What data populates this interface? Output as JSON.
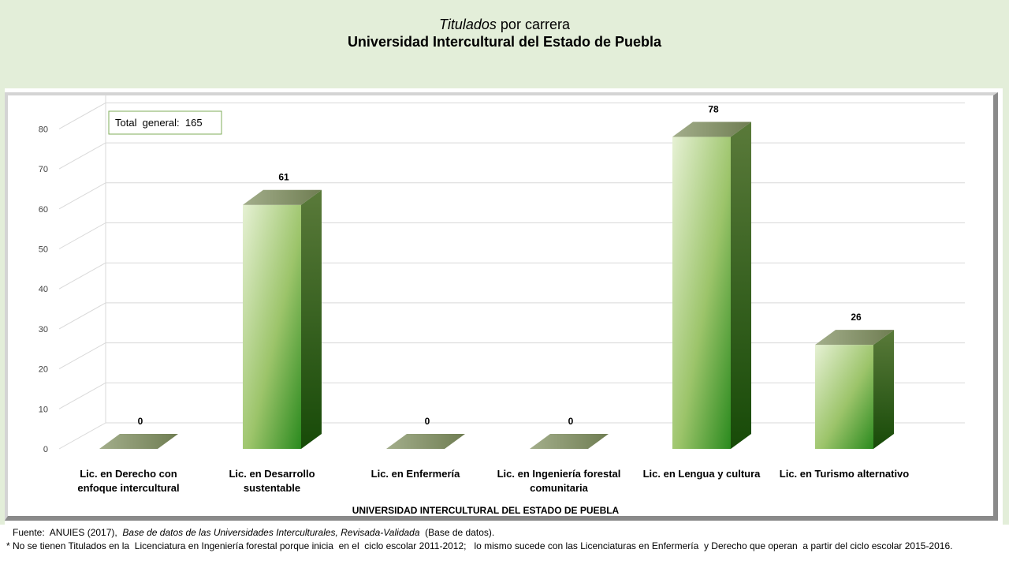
{
  "header": {
    "title_italic": "Titulados",
    "title_rest": " por carrera",
    "subtitle": "Universidad Intercultural del Estado de Puebla"
  },
  "chart_data": {
    "type": "bar",
    "categories": [
      [
        "Lic. en Derecho con",
        "enfoque intercultural"
      ],
      [
        "Lic. en Desarrollo",
        "sustentable"
      ],
      [
        "Lic. en Enfermería"
      ],
      [
        "Lic. en Ingeniería forestal",
        "comunitaria"
      ],
      [
        "Lic. en Lengua y cultura"
      ],
      [
        "Lic. en Turismo alternativo"
      ]
    ],
    "values": [
      0,
      61,
      0,
      0,
      78,
      26
    ],
    "data_labels": [
      "0",
      "61",
      "0",
      "0",
      "78",
      "26"
    ],
    "yticks": [
      "0",
      "10",
      "20",
      "30",
      "40",
      "50",
      "60",
      "70",
      "80"
    ],
    "ylim": [
      0,
      80
    ],
    "xlabel": "UNIVERSIDAD INTERCULTURAL DEL ESTADO DE PUEBLA",
    "annotation": "Total  general:  165",
    "grid": true,
    "colors": {
      "bar_light": "#e6f1d4",
      "bar_mid": "#9cc46a",
      "bar_dark": "#2a8a1e",
      "bar_side": "#2f5a14",
      "bar_top": "#8c9a70",
      "grid": "#d9d9d9",
      "box_border": "#7fae5a"
    }
  },
  "footer": {
    "source_prefix": "Fuente:  ANUIES (2017),  ",
    "source_italic": "Base de datos de las Universidades  Interculturales,  Revisada-Validada",
    "source_suffix": "  (Base de datos).",
    "note": "* No se tienen Titulados en la  Licenciatura en Ingeniería forestal porque inicia  en el  ciclo escolar 2011-2012;   lo mismo sucede con las Licenciaturas en Enfermería  y Derecho que operan  a partir del ciclo escolar 2015-2016."
  }
}
